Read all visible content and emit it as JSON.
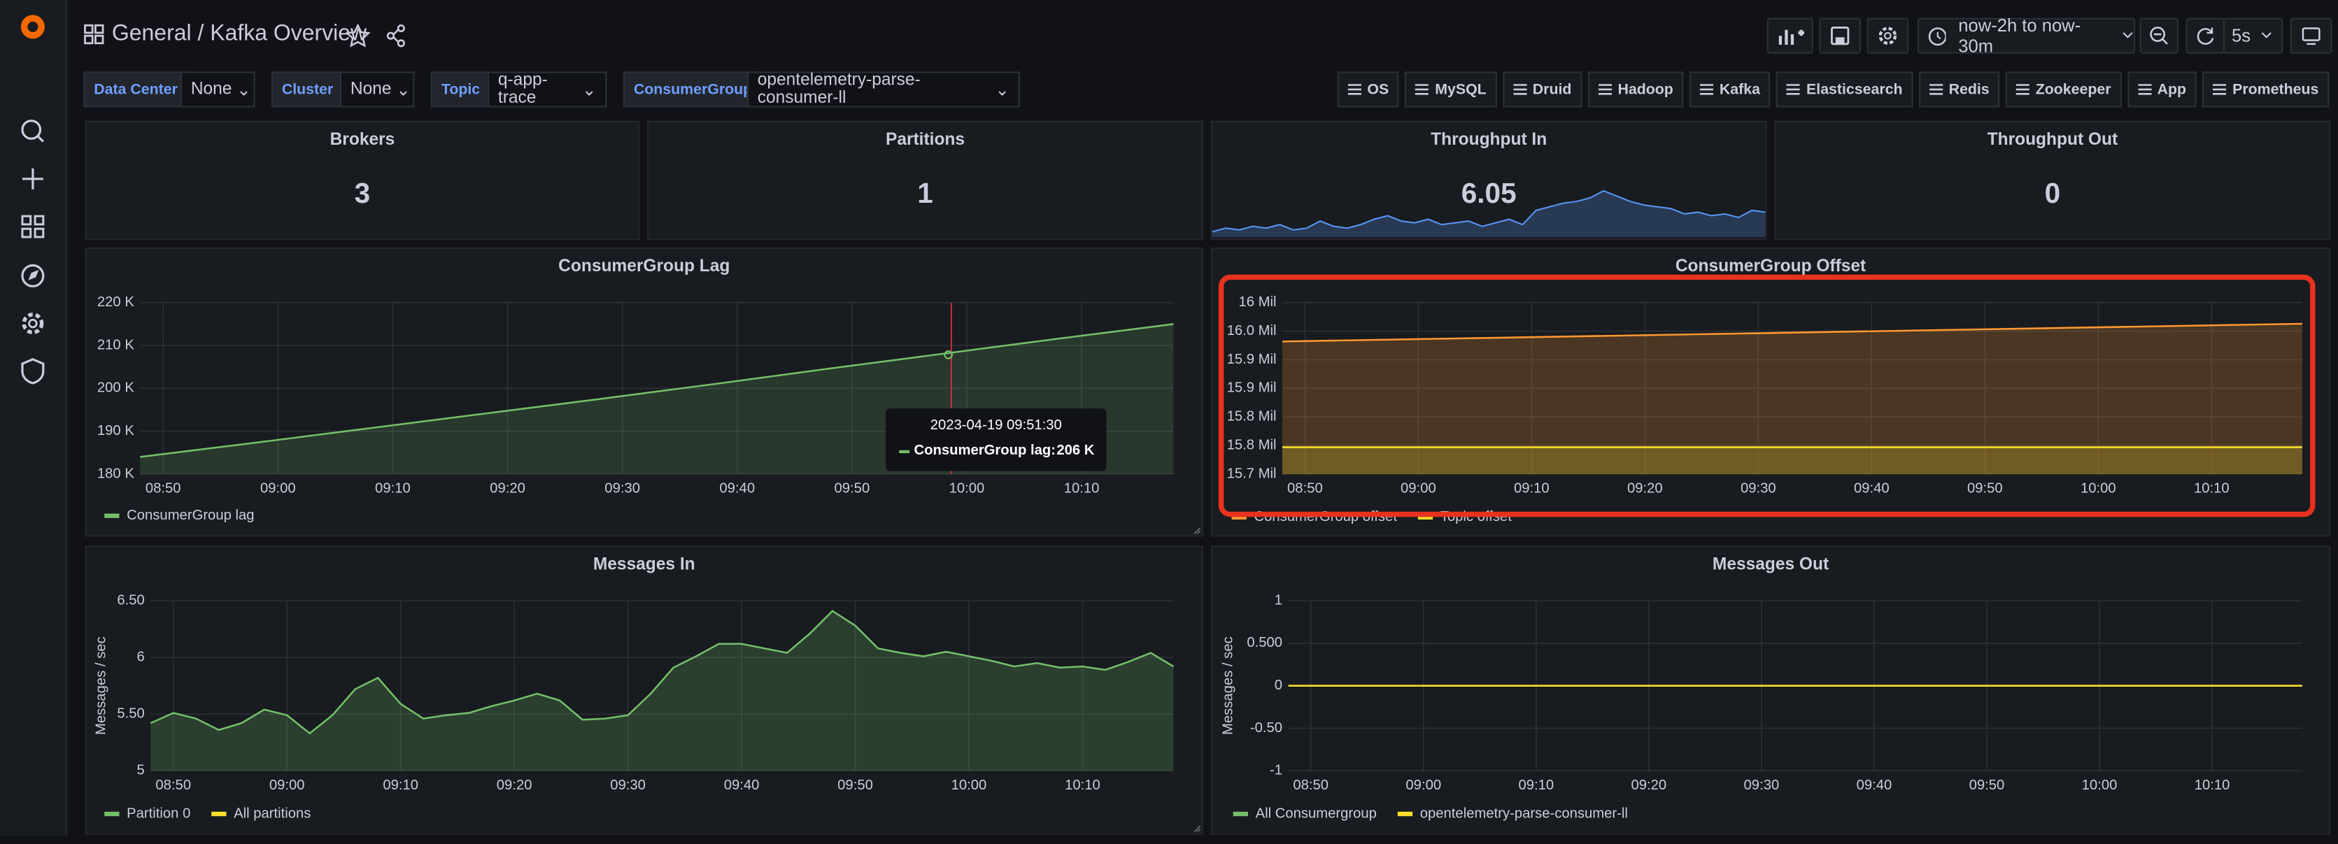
{
  "header": {
    "breadcrumb": "General",
    "title": "/ Kafka Overview",
    "time_range": "now-2h to now-30m",
    "refresh": "5s"
  },
  "variables": [
    {
      "label": "Data Center",
      "value": "None"
    },
    {
      "label": "Cluster",
      "value": "None"
    },
    {
      "label": "Topic",
      "value": "q-app-trace"
    },
    {
      "label": "ConsumerGroup",
      "value": "opentelemetry-parse-consumer-ll"
    }
  ],
  "links": [
    "OS",
    "MySQL",
    "Druid",
    "Hadoop",
    "Kafka",
    "Elasticsearch",
    "Redis",
    "Zookeeper",
    "App",
    "Prometheus"
  ],
  "stats": [
    {
      "title": "Brokers",
      "value": 3
    },
    {
      "title": "Partitions",
      "value": 1
    },
    {
      "title": "Throughput In",
      "value": 6.05,
      "color": "#5794f2",
      "sparkline": [
        0.3,
        0.5,
        0.4,
        0.6,
        0.5,
        0.7,
        0.4,
        0.5,
        0.9,
        0.6,
        0.5,
        0.7,
        1.0,
        1.2,
        0.9,
        0.8,
        1.0,
        0.7,
        0.8,
        0.9,
        0.6,
        0.8,
        1.0,
        0.7,
        1.5,
        1.7,
        1.9,
        2.0,
        2.2,
        2.6,
        2.3,
        2.0,
        1.8,
        1.7,
        1.6,
        1.3,
        1.4,
        1.2,
        1.3,
        1.1,
        1.5,
        1.4
      ]
    },
    {
      "title": "Throughput Out",
      "value": 0
    }
  ],
  "lag": {
    "type": "line",
    "title": "ConsumerGroup Lag",
    "x": [
      "08:48",
      "08:58",
      "09:08",
      "09:18",
      "09:28",
      "09:38",
      "09:48",
      "09:58",
      "10:08",
      "10:18"
    ],
    "xlim": [
      "08:48",
      "10:18"
    ],
    "xticks": [
      "08:50",
      "09:00",
      "09:10",
      "09:20",
      "09:30",
      "09:40",
      "09:50",
      "10:00",
      "10:10"
    ],
    "ylim": [
      180000,
      220000
    ],
    "yticks": [
      {
        "value": 180000,
        "label": "180 K"
      },
      {
        "value": 190000,
        "label": "190 K"
      },
      {
        "value": 200000,
        "label": "200 K"
      },
      {
        "value": 210000,
        "label": "210 K"
      },
      {
        "value": 220000,
        "label": "220 K"
      }
    ],
    "series": [
      {
        "name": "ConsumerGroup lag",
        "color": "#73bf69",
        "values": [
          184000,
          187300,
          190700,
          194100,
          197500,
          201000,
          204600,
          208100,
          211600,
          215000
        ]
      }
    ],
    "tooltip": {
      "time": "2023-04-19 09:51:30",
      "label": "ConsumerGroup lag:",
      "value": 206000,
      "value_label": "206 K"
    }
  },
  "offset": {
    "type": "line",
    "title": "ConsumerGroup Offset",
    "x": [
      "08:48",
      "10:18"
    ],
    "xlim": [
      "08:48",
      "10:18"
    ],
    "xticks": [
      "08:50",
      "09:00",
      "09:10",
      "09:20",
      "09:30",
      "09:40",
      "09:50",
      "10:00",
      "10:10"
    ],
    "ylim": [
      15700000,
      16000000
    ],
    "yticks": [
      {
        "value": 15700000,
        "label": "15.7 Mil"
      },
      {
        "value": 15750000,
        "label": "15.8 Mil"
      },
      {
        "value": 15800000,
        "label": "15.8 Mil"
      },
      {
        "value": 15850000,
        "label": "15.9 Mil"
      },
      {
        "value": 15900000,
        "label": "15.9 Mil"
      },
      {
        "value": 15950000,
        "label": "16.0 Mil"
      },
      {
        "value": 16000000,
        "label": "16 Mil"
      }
    ],
    "series": [
      {
        "name": "ConsumerGroup offset",
        "color": "#ff9830",
        "values": [
          15932000,
          15963000
        ]
      },
      {
        "name": "Topic offset",
        "color": "#fade2a",
        "values": [
          15747000,
          15747000
        ]
      }
    ]
  },
  "messages_in": {
    "type": "line",
    "title": "Messages In",
    "ylabel": "Messages / sec",
    "x": [
      "08:48",
      "08:50",
      "08:52",
      "08:54",
      "08:56",
      "08:58",
      "09:00",
      "09:02",
      "09:04",
      "09:06",
      "09:08",
      "09:10",
      "09:12",
      "09:14",
      "09:16",
      "09:18",
      "09:20",
      "09:22",
      "09:24",
      "09:26",
      "09:28",
      "09:30",
      "09:32",
      "09:34",
      "09:36",
      "09:38",
      "09:40",
      "09:42",
      "09:44",
      "09:46",
      "09:48",
      "09:50",
      "09:52",
      "09:54",
      "09:56",
      "09:58",
      "10:00",
      "10:02",
      "10:04",
      "10:06",
      "10:08",
      "10:10",
      "10:12",
      "10:14",
      "10:16",
      "10:18"
    ],
    "xlim": [
      "08:48",
      "10:18"
    ],
    "xticks": [
      "08:50",
      "09:00",
      "09:10",
      "09:20",
      "09:30",
      "09:40",
      "09:50",
      "10:00",
      "10:10"
    ],
    "ylim": [
      5,
      6.5
    ],
    "yticks": [
      5,
      {
        "value": 5.5,
        "label": "5.50"
      },
      6,
      {
        "value": 6.5,
        "label": "6.50"
      }
    ],
    "series": [
      {
        "name": "Partition 0",
        "color": "#73bf69",
        "values": [
          5.42,
          5.51,
          5.46,
          5.36,
          5.42,
          5.54,
          5.49,
          5.33,
          5.49,
          5.72,
          5.82,
          5.59,
          5.46,
          5.49,
          5.51,
          5.57,
          5.62,
          5.68,
          5.62,
          5.45,
          5.46,
          5.49,
          5.68,
          5.91,
          6.01,
          6.12,
          6.12,
          6.08,
          6.04,
          6.21,
          6.41,
          6.28,
          6.08,
          6.04,
          6.01,
          6.05,
          6.01,
          5.97,
          5.92,
          5.95,
          5.91,
          5.92,
          5.89,
          5.96,
          6.04,
          5.92
        ]
      },
      {
        "name": "All partitions",
        "color": "#fade2a"
      }
    ]
  },
  "messages_out": {
    "type": "line",
    "title": "Messages Out",
    "ylabel": "Messages / sec",
    "x": [
      "08:48",
      "10:18"
    ],
    "xlim": [
      "08:48",
      "10:18"
    ],
    "xticks": [
      "08:50",
      "09:00",
      "09:10",
      "09:20",
      "09:30",
      "09:40",
      "09:50",
      "10:00",
      "10:10"
    ],
    "ylim": [
      -1,
      1
    ],
    "yticks": [
      -1,
      {
        "value": -0.5,
        "label": "-0.50"
      },
      0,
      {
        "value": 0.5,
        "label": "0.500"
      },
      1
    ],
    "series": [
      {
        "name": "All Consumergroup",
        "color": "#73bf69"
      },
      {
        "name": "opentelemetry-parse-consumer-ll",
        "color": "#fade2a",
        "values": [
          0,
          0
        ]
      }
    ]
  }
}
